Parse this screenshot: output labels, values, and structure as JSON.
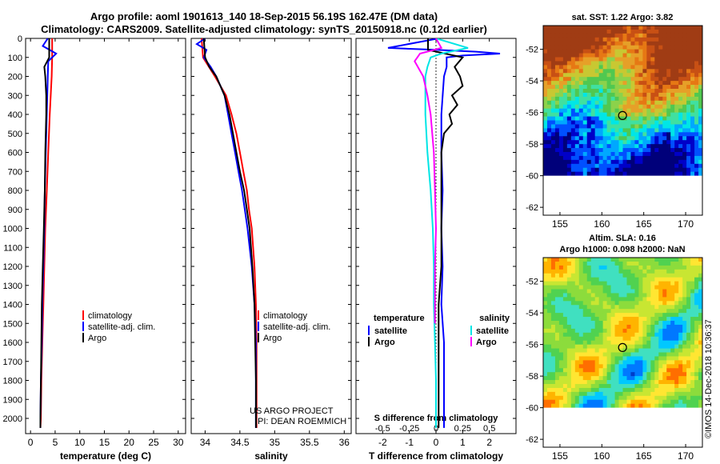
{
  "titles": {
    "line1": "Argo profile: aoml 1901613_140 18-Sep-2015 56.19S 162.47E (DM data)",
    "line2": "Climatology: CARS2009. Satellite-adjusted climatology: synTS_20150918.nc (0.12d earlier)"
  },
  "credit": "US ARGO PROJECT",
  "pi": "PI: DEAN ROEMMICH",
  "watermark": "©IMOS 14-Dec-2018 10:36:37",
  "map_titles": {
    "sst": "sat. SST: 1.22 Argo: 3.82",
    "sla1": "Altim. SLA: 0.16",
    "sla2": "Argo h1000: 0.098 h2000: NaN"
  },
  "colors": {
    "climatology": "#ff0000",
    "satellite": "#0000ff",
    "argo": "#000000",
    "salinity_diff_satellite": "#00e5e5",
    "salinity_diff_argo": "#ff00ff"
  },
  "chart_data": [
    {
      "type": "line",
      "xlabel": "temperature (deg C)",
      "xlim": [
        -1,
        31.5
      ],
      "xticks": [
        0,
        5,
        10,
        15,
        20,
        25,
        30
      ],
      "ylim": [
        0,
        2080
      ],
      "yticks": [
        0,
        100,
        200,
        300,
        400,
        500,
        600,
        700,
        800,
        900,
        1000,
        1100,
        1200,
        1300,
        1400,
        1500,
        1600,
        1700,
        1800,
        1900,
        2000
      ],
      "legend": [
        "climatology",
        "satellite-adj. clim.",
        "Argo"
      ],
      "series": [
        {
          "name": "climatology",
          "depth": [
            0,
            100,
            200,
            300,
            400,
            600,
            800,
            1000,
            1200,
            1400,
            1600,
            1800,
            2000,
            2050
          ],
          "values": [
            4.4,
            4.4,
            4.3,
            4.1,
            3.9,
            3.6,
            3.3,
            3.0,
            2.8,
            2.6,
            2.4,
            2.2,
            2.1,
            2.0
          ]
        },
        {
          "name": "satellite-adj. clim.",
          "depth": [
            0,
            40,
            80,
            120,
            200,
            300,
            400,
            600,
            800,
            1000,
            1200,
            1400,
            1600,
            1800,
            2000,
            2050
          ],
          "values": [
            3.5,
            2.5,
            5.2,
            3.6,
            3.5,
            3.4,
            3.3,
            3.1,
            2.9,
            2.8,
            2.6,
            2.4,
            2.3,
            2.1,
            2.0,
            2.0
          ]
        },
        {
          "name": "Argo",
          "depth": [
            0,
            100,
            150,
            200,
            300,
            400,
            600,
            800,
            1000,
            1200,
            1400,
            1600,
            1800,
            2000,
            2050
          ],
          "values": [
            3.8,
            3.8,
            2.8,
            3.0,
            3.2,
            3.2,
            3.0,
            2.9,
            2.7,
            2.5,
            2.3,
            2.2,
            2.1,
            2.0,
            2.0
          ]
        }
      ]
    },
    {
      "type": "line",
      "xlabel": "salinity",
      "xlim": [
        33.8,
        36.1
      ],
      "xticks": [
        34,
        34.5,
        35,
        35.5,
        36
      ],
      "ylim": [
        0,
        2080
      ],
      "legend": [
        "climatology",
        "satellite-adj. clim.",
        "Argo"
      ],
      "series": [
        {
          "name": "climatology",
          "depth": [
            0,
            100,
            200,
            300,
            400,
            500,
            600,
            700,
            800,
            900,
            1000,
            1200,
            1400,
            1600,
            1800,
            2050
          ],
          "values": [
            33.95,
            33.97,
            34.14,
            34.3,
            34.38,
            34.45,
            34.5,
            34.55,
            34.6,
            34.63,
            34.67,
            34.71,
            34.73,
            34.74,
            34.74,
            34.74
          ]
        },
        {
          "name": "satellite-adj. clim.",
          "depth": [
            0,
            30,
            60,
            100,
            150,
            200,
            300,
            400,
            500,
            600,
            700,
            800,
            900,
            1000,
            1200,
            1400,
            1600,
            1800,
            2050
          ],
          "values": [
            34.0,
            33.88,
            34.02,
            33.98,
            34.08,
            34.16,
            34.28,
            34.33,
            34.38,
            34.43,
            34.48,
            34.53,
            34.57,
            34.61,
            34.67,
            34.71,
            34.73,
            34.73,
            34.73
          ]
        },
        {
          "name": "Argo",
          "depth": [
            0,
            100,
            150,
            200,
            300,
            400,
            500,
            600,
            700,
            800,
            900,
            1000,
            1200,
            1400,
            1600,
            1800,
            2050
          ],
          "values": [
            33.98,
            34.0,
            34.06,
            34.16,
            34.28,
            34.35,
            34.4,
            34.45,
            34.5,
            34.56,
            34.6,
            34.64,
            34.68,
            34.71,
            34.72,
            34.73,
            34.73
          ]
        }
      ]
    },
    {
      "type": "line",
      "xlabel": "T difference from climatology",
      "xlabel2": "S difference from climatology",
      "xlim": [
        -3,
        3
      ],
      "xticks": [
        -2,
        -1,
        0,
        1,
        2
      ],
      "xticks2": [
        -0.5,
        -0.25,
        0,
        0.25,
        0.5
      ],
      "ylim": [
        0,
        2080
      ],
      "legend_temperature": {
        "title": "temperature",
        "items": [
          "satellite",
          "Argo"
        ]
      },
      "legend_salinity": {
        "title": "salinity",
        "items": [
          "satellite",
          "Argo"
        ]
      },
      "series": [
        {
          "name": "temperature satellite",
          "depth": [
            0,
            50,
            60,
            70,
            80,
            90,
            100,
            150,
            200,
            400,
            600,
            800,
            1000,
            1200,
            1400,
            1600,
            1800,
            2000,
            2050
          ],
          "values": [
            0.1,
            -1.8,
            0.0,
            1.5,
            2.4,
            1.0,
            0.4,
            0.4,
            0.3,
            0.2,
            0.2,
            0.25,
            0.2,
            0.25,
            0.2,
            0.3,
            0.3,
            0.3,
            0.3
          ]
        },
        {
          "name": "temperature Argo",
          "depth": [
            0,
            60,
            100,
            150,
            200,
            250,
            300,
            350,
            400,
            450,
            500,
            600,
            800,
            1000,
            1200,
            1400,
            1600,
            1800,
            2000,
            2050
          ],
          "values": [
            -0.3,
            -0.3,
            1.0,
            0.7,
            0.9,
            1.0,
            0.6,
            0.8,
            0.5,
            0.6,
            0.3,
            0.2,
            0.2,
            0.2,
            0.2,
            0.1,
            0.1,
            0.1,
            0.1,
            0.1
          ]
        },
        {
          "name": "salinity satellite",
          "depth": [
            0,
            50,
            80,
            100,
            150,
            200,
            400,
            600,
            800,
            1000,
            1200,
            1400,
            1600,
            1800,
            2000,
            2050
          ],
          "values": [
            0.0,
            0.3,
            0.05,
            -0.05,
            -0.08,
            -0.1,
            -0.1,
            -0.08,
            -0.05,
            -0.03,
            -0.02,
            -0.02,
            -0.01,
            0.0,
            0.0,
            0.0
          ]
        },
        {
          "name": "salinity Argo",
          "depth": [
            0,
            50,
            80,
            120,
            200,
            300,
            400,
            600,
            800,
            1000,
            1200,
            1400,
            1500
          ],
          "values": [
            0.0,
            0.05,
            -0.15,
            -0.2,
            -0.12,
            -0.08,
            -0.05,
            -0.02,
            -0.01,
            0.0,
            -0.01,
            -0.01,
            -0.01
          ]
        }
      ]
    }
  ],
  "maps": {
    "sst": {
      "xticks": [
        155,
        160,
        165,
        170
      ],
      "yticks": [
        -52,
        -54,
        -56,
        -58,
        -60,
        -62
      ],
      "lon": [
        153,
        172
      ],
      "lat": [
        -50.5,
        -62.5
      ],
      "float_lon": 162.47,
      "float_lat": -56.19
    },
    "sla": {
      "xticks": [
        155,
        160,
        165,
        170
      ],
      "yticks": [
        -52,
        -54,
        -56,
        -58,
        -60,
        -62
      ],
      "lon": [
        153,
        172
      ],
      "lat": [
        -50.5,
        -62.5
      ],
      "float_lon": 162.47,
      "float_lat": -56.19
    }
  }
}
